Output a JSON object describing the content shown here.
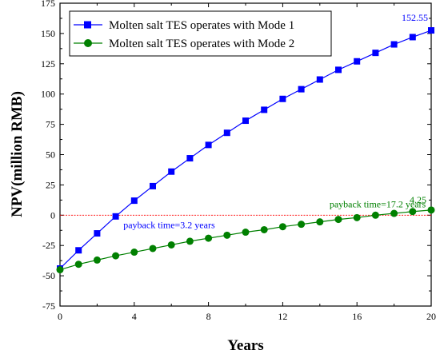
{
  "chart_data": {
    "type": "line",
    "xlabel": "Years",
    "ylabel": "NPV(million RMB)",
    "xlim": [
      0,
      20
    ],
    "ylim": [
      -75,
      175
    ],
    "xticks": [
      0,
      4,
      8,
      12,
      16,
      20
    ],
    "yticks": [
      -75,
      -50,
      -25,
      0,
      25,
      50,
      75,
      100,
      125,
      150,
      175
    ],
    "grid": false,
    "legend_position": "top-left",
    "colors": {
      "mode1": "#0000ff",
      "mode2": "#008000",
      "reference": "#ff0000"
    },
    "x": [
      0,
      1,
      2,
      3,
      4,
      5,
      6,
      7,
      8,
      9,
      10,
      11,
      12,
      13,
      14,
      15,
      16,
      17,
      18,
      19,
      20
    ],
    "series": [
      {
        "name": "Molten salt TES operates with Mode 1",
        "marker": "square",
        "values": [
          -44,
          -29,
          -15,
          -1,
          12,
          24,
          36,
          47,
          58,
          68,
          78,
          87,
          96,
          104,
          112,
          120,
          127,
          134,
          141,
          147,
          152.55
        ]
      },
      {
        "name": "Molten salt TES operates with Mode 2",
        "marker": "circle",
        "values": [
          -45,
          -40.5,
          -37,
          -33.5,
          -30.5,
          -27.5,
          -24.5,
          -21.5,
          -19,
          -16.5,
          -14,
          -12,
          -9.5,
          -7.5,
          -5.5,
          -3.5,
          -2,
          0,
          1.5,
          3,
          4.25
        ]
      }
    ],
    "annotations": [
      {
        "text": "152.55",
        "series": 0,
        "x": 20,
        "y": 152.55
      },
      {
        "text": "payback time=3.2 years",
        "series": 0,
        "x": 3.2,
        "y": 0
      },
      {
        "text": "payback time=17.2 years",
        "series": 1,
        "x": 17.2,
        "y": 0
      },
      {
        "text": "4.25",
        "series": 1,
        "x": 20,
        "y": 4.25
      }
    ]
  }
}
